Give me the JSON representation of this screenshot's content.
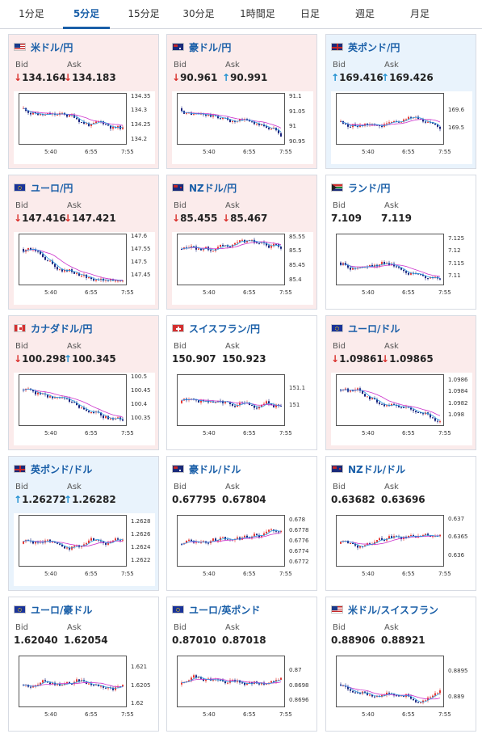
{
  "tabs": [
    "1分足",
    "5分足",
    "15分足",
    "30分足",
    "1時間足",
    "日足",
    "週足",
    "月足"
  ],
  "active_tab": "5分足",
  "bid_label": "Bid",
  "ask_label": "Ask",
  "x_ticks": [
    "5:40",
    "6:55",
    "7:55"
  ],
  "colors": {
    "bull": "#e53935",
    "bear": "#1a237e",
    "ma1": "#cc33cc",
    "ma2": "#2b9be0",
    "down_bg": "#fbebeb",
    "up_bg": "#e9f3fc"
  },
  "cards": [
    {
      "title": "米ドル/円",
      "flag": "us",
      "trend": "down",
      "bid": "134.164",
      "ask": "134.183",
      "dir": "down",
      "y_ticks": [
        "134.35",
        "134.3",
        "134.25",
        "134.2"
      ],
      "ylim": [
        134.18,
        134.36
      ]
    },
    {
      "title": "豪ドル/円",
      "flag": "au",
      "trend": "down",
      "bid": "90.961",
      "ask": "90.991",
      "dir": "mixed",
      "y_ticks": [
        "91.1",
        "91.05",
        "91",
        "90.95"
      ],
      "ylim": [
        90.94,
        91.11
      ]
    },
    {
      "title": "英ポンド/円",
      "flag": "gb",
      "trend": "up",
      "bid": "169.416",
      "ask": "169.426",
      "dir": "up",
      "y_ticks": [
        "169.6",
        "169.5"
      ],
      "ylim": [
        169.4,
        169.7
      ]
    },
    {
      "title": "ユーロ/円",
      "flag": "eu",
      "trend": "down",
      "bid": "147.416",
      "ask": "147.421",
      "dir": "down",
      "y_ticks": [
        "147.6",
        "147.55",
        "147.5",
        "147.45"
      ],
      "ylim": [
        147.41,
        147.61
      ]
    },
    {
      "title": "NZドル/円",
      "flag": "nz",
      "trend": "down",
      "bid": "85.455",
      "ask": "85.467",
      "dir": "down",
      "y_ticks": [
        "85.55",
        "85.5",
        "85.45",
        "85.4"
      ],
      "ylim": [
        85.38,
        85.56
      ]
    },
    {
      "title": "ランド/円",
      "flag": "za",
      "trend": "neutral",
      "bid": "7.109",
      "ask": "7.119",
      "dir": "none",
      "y_ticks": [
        "7.125",
        "7.12",
        "7.115",
        "7.11"
      ],
      "ylim": [
        7.106,
        7.127
      ]
    },
    {
      "title": "カナダドル/円",
      "flag": "ca",
      "trend": "down",
      "bid": "100.298",
      "ask": "100.345",
      "dir": "mixed",
      "y_ticks": [
        "100.5",
        "100.45",
        "100.4",
        "100.35"
      ],
      "ylim": [
        100.32,
        100.51
      ]
    },
    {
      "title": "スイスフラン/円",
      "flag": "ch",
      "trend": "neutral",
      "bid": "150.907",
      "ask": "150.923",
      "dir": "none",
      "y_ticks": [
        "151.1",
        "151"
      ],
      "ylim": [
        150.88,
        151.18
      ]
    },
    {
      "title": "ユーロ/ドル",
      "flag": "euus",
      "trend": "down",
      "bid": "1.09861",
      "ask": "1.09865",
      "dir": "down",
      "y_ticks": [
        "1.0986",
        "1.0984",
        "1.0982",
        "1.098"
      ],
      "ylim": [
        1.0978,
        1.0987
      ]
    },
    {
      "title": "英ポンド/ドル",
      "flag": "gbus",
      "trend": "up",
      "bid": "1.26272",
      "ask": "1.26282",
      "dir": "up",
      "y_ticks": [
        "1.2628",
        "1.2626",
        "1.2624",
        "1.2622"
      ],
      "ylim": [
        1.2621,
        1.2629
      ]
    },
    {
      "title": "豪ドル/ドル",
      "flag": "auus",
      "trend": "neutral",
      "bid": "0.67795",
      "ask": "0.67804",
      "dir": "none",
      "y_ticks": [
        "0.678",
        "0.6778",
        "0.6776",
        "0.6774",
        "0.6772"
      ],
      "ylim": [
        0.6771,
        0.6781
      ]
    },
    {
      "title": "NZドル/ドル",
      "flag": "nzus",
      "trend": "neutral",
      "bid": "0.63682",
      "ask": "0.63696",
      "dir": "none",
      "y_ticks": [
        "0.637",
        "0.6365",
        "0.636"
      ],
      "ylim": [
        0.6357,
        0.6371
      ]
    },
    {
      "title": "ユーロ/豪ドル",
      "flag": "euau",
      "trend": "neutral",
      "bid": "1.62040",
      "ask": "1.62054",
      "dir": "none",
      "y_ticks": [
        "1.621",
        "1.6205",
        "1.62"
      ],
      "ylim": [
        1.6199,
        1.6213
      ]
    },
    {
      "title": "ユーロ/英ポンド",
      "flag": "eugb",
      "trend": "neutral",
      "bid": "0.87010",
      "ask": "0.87018",
      "dir": "none",
      "y_ticks": [
        "0.87",
        "0.8698",
        "0.8696"
      ],
      "ylim": [
        0.8695,
        0.8702
      ]
    },
    {
      "title": "米ドル/スイスフラン",
      "flag": "usch",
      "trend": "neutral",
      "bid": "0.88906",
      "ask": "0.88921",
      "dir": "none",
      "y_ticks": [
        "0.8895",
        "0.889"
      ],
      "ylim": [
        0.8888,
        0.8898
      ]
    }
  ]
}
